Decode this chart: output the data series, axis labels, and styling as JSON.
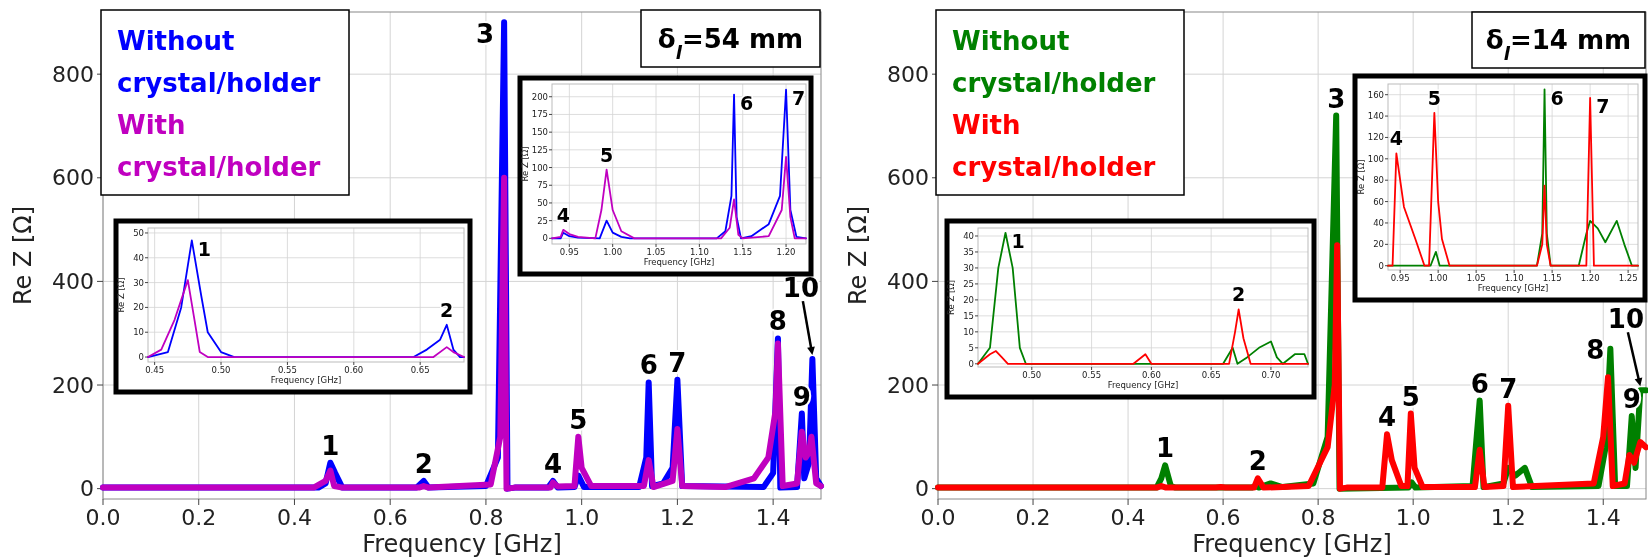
{
  "chart_data": [
    {
      "type": "line",
      "xlabel": "Frequency [GHz]",
      "ylabel": "Re Z [Ω]",
      "xlim": [
        0,
        1.5
      ],
      "ylim": [
        -20,
        920
      ],
      "xticks": [
        {
          "value": 0,
          "label": "0.0"
        },
        0.2,
        0.4,
        0.6,
        0.8,
        {
          "value": 1,
          "label": "1.0"
        },
        1.2,
        1.4
      ],
      "yticks": [
        0,
        200,
        400,
        600,
        800
      ],
      "grid": true,
      "legend": "top left",
      "series": [
        {
          "name": "Without crystal/holder",
          "color": "#0000ff",
          "x": [
            0,
            0.45,
            0.465,
            0.475,
            0.485,
            0.5,
            0.655,
            0.67,
            0.68,
            0.8,
            0.825,
            0.838,
            0.845,
            0.86,
            0.93,
            0.94,
            0.95,
            0.985,
            0.993,
            1.005,
            1.12,
            1.135,
            1.14,
            1.147,
            1.17,
            1.19,
            1.2,
            1.21,
            1.38,
            1.4,
            1.41,
            1.415,
            1.45,
            1.46,
            1.465,
            1.475,
            1.482,
            1.49,
            1.5
          ],
          "values": [
            2,
            2,
            10,
            50,
            30,
            2,
            2,
            15,
            2,
            5,
            60,
            900,
            0,
            2,
            2,
            15,
            2,
            3,
            25,
            3,
            3,
            60,
            205,
            5,
            10,
            40,
            210,
            5,
            3,
            30,
            290,
            2,
            3,
            145,
            20,
            50,
            250,
            20,
            5
          ]
        },
        {
          "name": "With crystal/holder",
          "color": "#c000c0",
          "x": [
            0,
            0.44,
            0.465,
            0.475,
            0.483,
            0.5,
            0.66,
            0.67,
            0.68,
            0.81,
            0.83,
            0.838,
            0.843,
            0.86,
            0.935,
            0.94,
            0.95,
            0.985,
            0.993,
            1.0,
            1.02,
            1.13,
            1.14,
            1.15,
            1.19,
            1.2,
            1.21,
            1.3,
            1.36,
            1.39,
            1.405,
            1.41,
            1.42,
            1.45,
            1.46,
            1.468,
            1.475,
            1.48,
            1.49,
            1.5
          ],
          "values": [
            2,
            2,
            15,
            35,
            5,
            2,
            2,
            5,
            2,
            8,
            100,
            600,
            0,
            2,
            2,
            12,
            4,
            5,
            100,
            40,
            5,
            5,
            55,
            3,
            15,
            115,
            5,
            3,
            20,
            60,
            150,
            280,
            5,
            10,
            110,
            60,
            70,
            100,
            10,
            5
          ]
        }
      ],
      "annotations": [
        "δ$_{l}$=54 mm",
        {
          "text": "1",
          "x": 0.475,
          "y": 50
        },
        {
          "text": "2",
          "x": 0.67,
          "y": 15
        },
        {
          "text": "3",
          "x": 0.838,
          "y": 900
        },
        {
          "text": "4",
          "x": 0.94,
          "y": 15
        },
        {
          "text": "5",
          "x": 0.993,
          "y": 100
        },
        {
          "text": "6",
          "x": 1.14,
          "y": 205
        },
        {
          "text": "7",
          "x": 1.2,
          "y": 210
        },
        {
          "text": "8",
          "x": 1.41,
          "y": 290
        },
        {
          "text": "9",
          "x": 1.46,
          "y": 145
        },
        {
          "text": "10",
          "x": 1.482,
          "y": 250
        }
      ]
    },
    {
      "type": "line",
      "xlabel": "Frequency [GHz]",
      "ylabel": "Re Z [Ω]",
      "xlim": [
        0.445,
        0.683
      ],
      "ylim": [
        -2,
        52
      ],
      "xticks": [
        0.45,
        {
          "value": 0.5,
          "label": "0.50"
        },
        0.55,
        {
          "value": 0.6,
          "label": "0.60"
        },
        0.65
      ],
      "yticks": [
        0,
        10,
        20,
        30,
        40,
        50
      ],
      "grid": true,
      "series": [
        {
          "color": "#0000ff",
          "x": [
            0.445,
            0.46,
            0.47,
            0.478,
            0.485,
            0.49,
            0.5,
            0.51,
            0.645,
            0.655,
            0.665,
            0.67,
            0.675,
            0.68,
            0.683
          ],
          "values": [
            0,
            2,
            20,
            47,
            25,
            10,
            2,
            0,
            0,
            3,
            7,
            13,
            3,
            0,
            0
          ]
        },
        {
          "color": "#c000c0",
          "x": [
            0.445,
            0.455,
            0.465,
            0.475,
            0.48,
            0.484,
            0.49,
            0.66,
            0.67,
            0.675,
            0.683
          ],
          "values": [
            0,
            3,
            15,
            31,
            15,
            2,
            0,
            0,
            4,
            2,
            0
          ]
        }
      ],
      "annotations": [
        {
          "text": "1",
          "x": 0.478,
          "y": 47
        },
        {
          "text": "2",
          "x": 0.67,
          "y": 13
        }
      ]
    },
    {
      "type": "line",
      "xlabel": "Frequency [GHz]",
      "ylabel": "Re Z [Ω]",
      "xlim": [
        0.93,
        1.223
      ],
      "ylim": [
        -8,
        218
      ],
      "xticks": [
        0.95,
        {
          "value": 1,
          "label": "1.00"
        },
        1.05,
        {
          "value": 1.1,
          "label": "1.10"
        },
        1.15,
        {
          "value": 1.2,
          "label": "1.20"
        }
      ],
      "yticks": [
        0,
        25,
        50,
        75,
        100,
        125,
        150,
        175,
        200
      ],
      "grid": true,
      "series": [
        {
          "color": "#0000ff",
          "x": [
            0.93,
            0.94,
            0.943,
            0.95,
            0.96,
            0.985,
            0.993,
            1.0,
            1.01,
            1.02,
            1.12,
            1.13,
            1.137,
            1.14,
            1.143,
            1.148,
            1.16,
            1.18,
            1.193,
            1.2,
            1.205,
            1.212,
            1.223
          ],
          "values": [
            0,
            0,
            8,
            3,
            1,
            0,
            25,
            8,
            2,
            0,
            0,
            10,
            60,
            203,
            30,
            0,
            3,
            20,
            60,
            210,
            40,
            2,
            0
          ]
        },
        {
          "color": "#c000c0",
          "x": [
            0.93,
            0.94,
            0.943,
            0.95,
            0.96,
            0.98,
            0.987,
            0.993,
            1.0,
            1.01,
            1.025,
            1.125,
            1.135,
            1.14,
            1.145,
            1.15,
            1.18,
            1.195,
            1.2,
            1.205,
            1.21,
            1.223
          ],
          "values": [
            0,
            2,
            12,
            6,
            2,
            0,
            40,
            97,
            40,
            10,
            0,
            0,
            15,
            55,
            5,
            0,
            3,
            40,
            115,
            30,
            0,
            0
          ]
        }
      ],
      "annotations": [
        {
          "text": "4",
          "x": 0.943,
          "y": 12
        },
        {
          "text": "5",
          "x": 0.993,
          "y": 97
        },
        {
          "text": "6",
          "x": 1.14,
          "y": 203
        },
        {
          "text": "7",
          "x": 1.2,
          "y": 210
        }
      ]
    },
    {
      "type": "line",
      "xlabel": "Frequency [GHz]",
      "ylabel": "Re Z [Ω]",
      "xlim": [
        0,
        1.49
      ],
      "ylim": [
        -20,
        920
      ],
      "xticks": [
        {
          "value": 0,
          "label": "0.0"
        },
        0.2,
        0.4,
        0.6,
        0.8,
        {
          "value": 1,
          "label": "1.0"
        },
        1.2,
        1.4
      ],
      "yticks": [
        0,
        200,
        400,
        600,
        800
      ],
      "grid": true,
      "legend": "top left",
      "series": [
        {
          "name": "Without crystal/holder",
          "color": "#008000",
          "x": [
            0,
            0.46,
            0.47,
            0.478,
            0.49,
            0.5,
            0.66,
            0.668,
            0.675,
            0.7,
            0.725,
            0.79,
            0.82,
            0.838,
            0.845,
            0.99,
            0.997,
            1.005,
            1.125,
            1.14,
            1.148,
            1.19,
            1.2,
            1.215,
            1.235,
            1.25,
            1.39,
            1.405,
            1.415,
            1.425,
            1.45,
            1.46,
            1.468,
            1.478,
            1.49
          ],
          "values": [
            2,
            2,
            20,
            45,
            5,
            2,
            2,
            5,
            2,
            10,
            3,
            10,
            100,
            720,
            0,
            2,
            12,
            2,
            5,
            170,
            3,
            10,
            40,
            25,
            40,
            3,
            5,
            80,
            270,
            5,
            5,
            140,
            40,
            190,
            190
          ]
        },
        {
          "name": "With crystal/holder",
          "color": "#ff0000",
          "x": [
            0,
            0.46,
            0.47,
            0.48,
            0.585,
            0.595,
            0.605,
            0.665,
            0.673,
            0.685,
            0.78,
            0.82,
            0.835,
            0.84,
            0.846,
            0.86,
            0.935,
            0.945,
            0.955,
            0.975,
            0.988,
            0.995,
            1.003,
            1.02,
            1.13,
            1.14,
            1.15,
            1.19,
            1.2,
            1.21,
            1.38,
            1.4,
            1.41,
            1.42,
            1.445,
            1.455,
            1.465,
            1.478,
            1.49
          ],
          "values": [
            2,
            2,
            5,
            2,
            2,
            3,
            2,
            2,
            20,
            2,
            5,
            80,
            200,
            470,
            0,
            2,
            2,
            105,
            55,
            5,
            5,
            145,
            40,
            3,
            3,
            75,
            3,
            5,
            160,
            3,
            10,
            100,
            215,
            5,
            10,
            65,
            50,
            90,
            80
          ]
        }
      ],
      "annotations": [
        "δ$_{l}$=14 mm",
        {
          "text": "1",
          "x": 0.478,
          "y": 45
        },
        {
          "text": "2",
          "x": 0.673,
          "y": 20
        },
        {
          "text": "3",
          "x": 0.838,
          "y": 720
        },
        {
          "text": "4",
          "x": 0.945,
          "y": 105
        },
        {
          "text": "5",
          "x": 0.995,
          "y": 145
        },
        {
          "text": "6",
          "x": 1.14,
          "y": 170
        },
        {
          "text": "7",
          "x": 1.2,
          "y": 160
        },
        {
          "text": "8",
          "x": 1.415,
          "y": 270
        },
        {
          "text": "9",
          "x": 1.46,
          "y": 140
        },
        {
          "text": "10",
          "x": 1.478,
          "y": 190
        }
      ]
    },
    {
      "type": "line",
      "xlabel": "Frequency [GHz]",
      "ylabel": "Re Z [Ω]",
      "xlim": [
        0.455,
        0.731
      ],
      "ylim": [
        -1,
        42.5
      ],
      "xticks": [
        {
          "value": 0.5,
          "label": "0.50"
        },
        0.55,
        {
          "value": 0.6,
          "label": "0.60"
        },
        0.65,
        {
          "value": 0.7,
          "label": "0.70"
        }
      ],
      "yticks": [
        0,
        5,
        10,
        15,
        20,
        25,
        30,
        35,
        40
      ],
      "grid": true,
      "series": [
        {
          "color": "#008000",
          "x": [
            0.455,
            0.465,
            0.472,
            0.478,
            0.484,
            0.49,
            0.495,
            0.66,
            0.668,
            0.672,
            0.68,
            0.69,
            0.7,
            0.705,
            0.71,
            0.72,
            0.728,
            0.731
          ],
          "values": [
            0,
            5,
            30,
            41,
            30,
            5,
            0,
            0,
            5,
            0,
            2,
            5,
            7,
            2,
            0,
            3,
            3,
            0
          ]
        },
        {
          "color": "#ff0000",
          "x": [
            0.455,
            0.465,
            0.47,
            0.475,
            0.48,
            0.585,
            0.595,
            0.6,
            0.665,
            0.67,
            0.673,
            0.677,
            0.683,
            0.731
          ],
          "values": [
            0,
            3,
            4,
            2,
            0,
            0,
            3,
            0,
            0,
            10,
            17,
            8,
            0,
            0
          ]
        }
      ],
      "annotations": [
        {
          "text": "1",
          "x": 0.478,
          "y": 41
        },
        {
          "text": "2",
          "x": 0.673,
          "y": 17
        }
      ]
    },
    {
      "type": "line",
      "xlabel": "Frequency [GHz]",
      "ylabel": "Re Z [Ω]",
      "xlim": [
        0.934,
        1.263
      ],
      "ylim": [
        -4,
        170
      ],
      "xticks": [
        0.95,
        {
          "value": 1,
          "label": "1.00"
        },
        1.05,
        {
          "value": 1.1,
          "label": "1.10"
        },
        1.15,
        {
          "value": 1.2,
          "label": "1.20"
        },
        1.25
      ],
      "yticks": [
        0,
        20,
        40,
        60,
        80,
        100,
        120,
        140,
        160
      ],
      "grid": true,
      "series": [
        {
          "color": "#008000",
          "x": [
            0.934,
            0.99,
            0.997,
            1.002,
            1.13,
            1.137,
            1.14,
            1.143,
            1.148,
            1.185,
            1.195,
            1.2,
            1.21,
            1.22,
            1.235,
            1.245,
            1.255,
            1.263
          ],
          "values": [
            0,
            0,
            13,
            0,
            0,
            30,
            165,
            30,
            0,
            0,
            30,
            42,
            35,
            22,
            42,
            20,
            0,
            0
          ]
        },
        {
          "color": "#ff0000",
          "x": [
            0.934,
            0.94,
            0.945,
            0.955,
            0.97,
            0.982,
            0.988,
            0.995,
            1.0,
            1.005,
            1.015,
            1.13,
            1.137,
            1.14,
            1.143,
            1.148,
            1.195,
            1.2,
            1.205,
            1.263
          ],
          "values": [
            0,
            0,
            105,
            55,
            25,
            0,
            0,
            143,
            60,
            25,
            0,
            0,
            20,
            75,
            20,
            0,
            0,
            157,
            0,
            0
          ]
        }
      ],
      "annotations": [
        {
          "text": "4",
          "x": 0.945,
          "y": 105
        },
        {
          "text": "5",
          "x": 0.995,
          "y": 143
        },
        {
          "text": "6",
          "x": 1.14,
          "y": 165
        },
        {
          "text": "7",
          "x": 1.2,
          "y": 157
        }
      ]
    }
  ]
}
